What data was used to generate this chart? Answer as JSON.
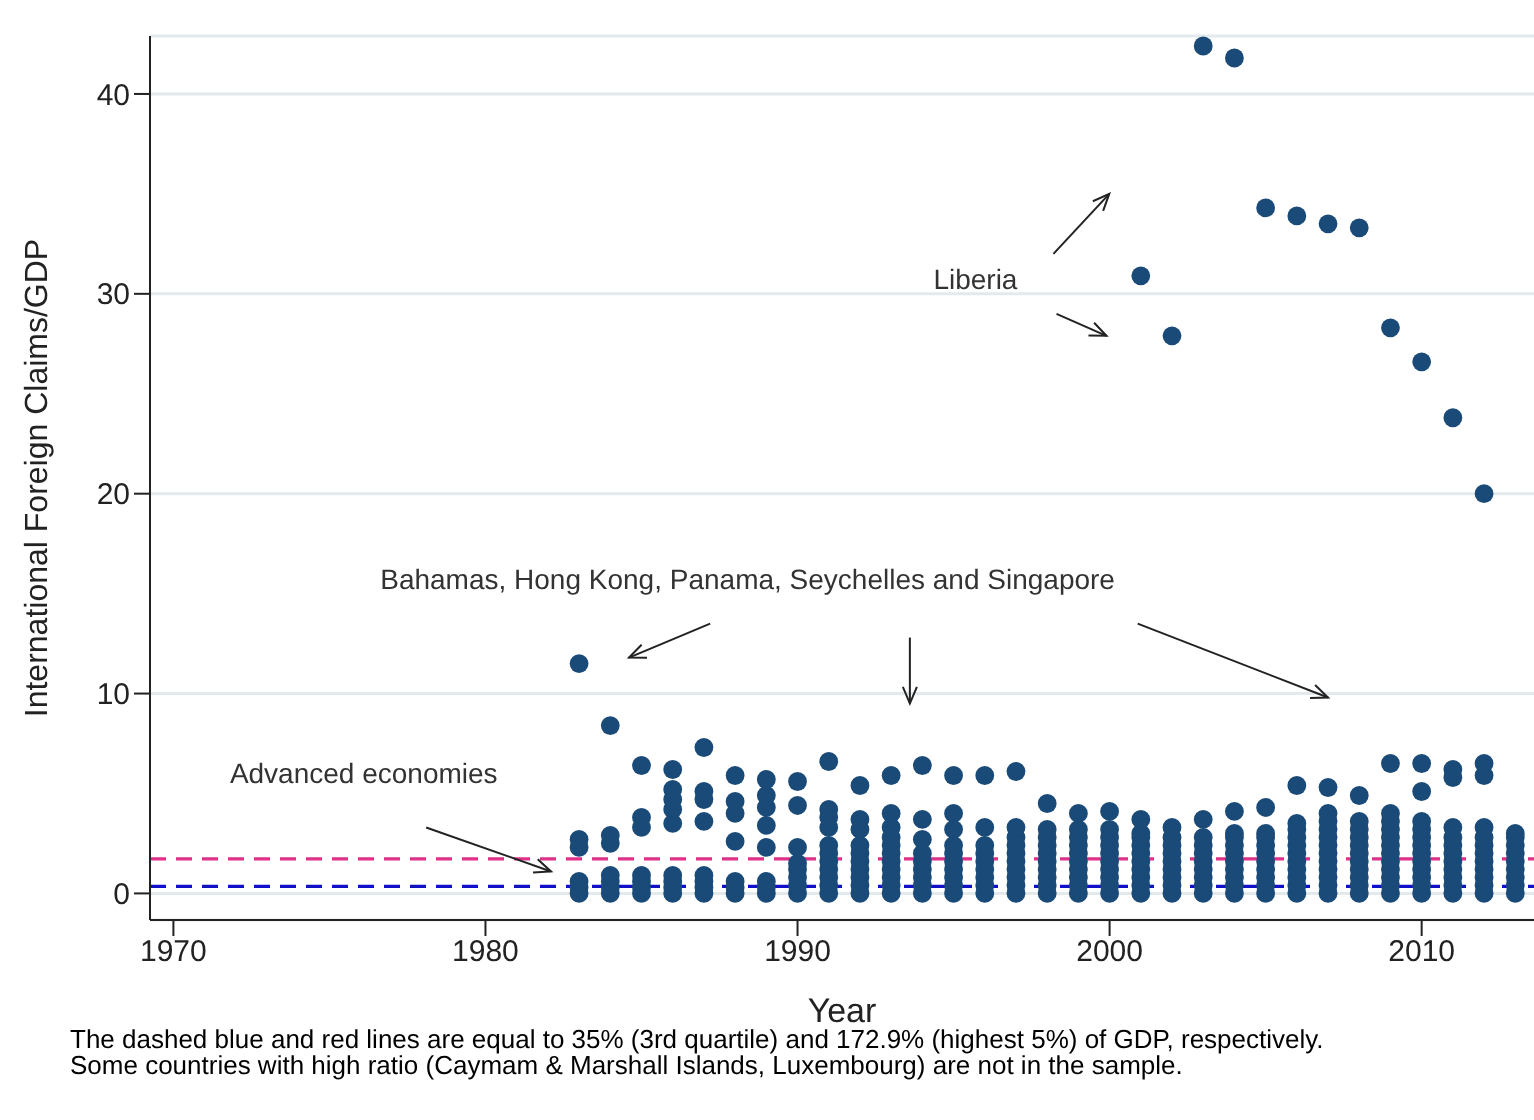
{
  "chart_data": {
    "type": "scatter",
    "xlabel": "Year",
    "ylabel": "International Foreign Claims/GDP",
    "xlim": [
      1969.25,
      2013.6
    ],
    "xticks": [
      1970,
      1980,
      1990,
      2000,
      2010
    ],
    "ylim": [
      -1.33,
      42.9
    ],
    "yticks": [
      0,
      10,
      20,
      30,
      40
    ],
    "grid": "y",
    "marker": "circle",
    "ref_lines": [
      {
        "axis": "y",
        "value": 0.35,
        "label": null,
        "color": "#1010c8",
        "line_style": "dashed"
      },
      {
        "axis": "y",
        "value": 1.729,
        "label": null,
        "color": "#e0308a",
        "line_style": "dashed"
      }
    ],
    "annotations": [
      "Liberia",
      "Bahamas, Hong Kong, Panama, Seychelles and Singapore",
      "Advanced economies",
      "The dashed blue and red lines are equal to 35% (3rd quartile) and 172.9% (highest 5%) of GDP, respectively.",
      "Some countries with high ratio (Caymam & Marshall Islands, Luxembourg) are not in the sample."
    ],
    "series": [
      {
        "color": "#1a4a78",
        "x": [
          1983,
          1983,
          1983,
          1983,
          1983,
          1983,
          1984,
          1984,
          1984,
          1984,
          1984,
          1984,
          1984,
          1985,
          1985,
          1985,
          1985,
          1985,
          1985,
          1985,
          1986,
          1986,
          1986,
          1986,
          1986,
          1986,
          1986,
          1986,
          1986,
          1987,
          1987,
          1987,
          1987,
          1987,
          1987,
          1987,
          1987,
          1988,
          1988,
          1988,
          1988,
          1988,
          1988,
          1988,
          1989,
          1989,
          1989,
          1989,
          1989,
          1989,
          1989,
          1989,
          1990,
          1990,
          1990,
          1990,
          1990,
          1990,
          1990,
          1990,
          1991,
          1991,
          1991,
          1991,
          1991,
          1991,
          1991,
          1991,
          1991,
          1991,
          1991,
          1992,
          1992,
          1992,
          1992,
          1992,
          1992,
          1992,
          1992,
          1992,
          1992,
          1993,
          1993,
          1993,
          1993,
          1993,
          1993,
          1993,
          1993,
          1993,
          1993,
          1993,
          1994,
          1994,
          1994,
          1994,
          1994,
          1994,
          1994,
          1994,
          1994,
          1995,
          1995,
          1995,
          1995,
          1995,
          1995,
          1995,
          1995,
          1995,
          1995,
          1996,
          1996,
          1996,
          1996,
          1996,
          1996,
          1996,
          1996,
          1996,
          1997,
          1997,
          1997,
          1997,
          1997,
          1997,
          1997,
          1997,
          1997,
          1997,
          1998,
          1998,
          1998,
          1998,
          1998,
          1998,
          1998,
          1998,
          1998,
          1998,
          1999,
          1999,
          1999,
          1999,
          1999,
          1999,
          1999,
          1999,
          1999,
          1999,
          2000,
          2000,
          2000,
          2000,
          2000,
          2000,
          2000,
          2000,
          2000,
          2000,
          2001,
          2001,
          2001,
          2001,
          2001,
          2001,
          2001,
          2001,
          2001,
          2001,
          2001,
          2002,
          2002,
          2002,
          2002,
          2002,
          2002,
          2002,
          2002,
          2002,
          2002,
          2003,
          2003,
          2003,
          2003,
          2003,
          2003,
          2003,
          2003,
          2003,
          2003,
          2004,
          2004,
          2004,
          2004,
          2004,
          2004,
          2004,
          2004,
          2004,
          2004,
          2004,
          2005,
          2005,
          2005,
          2005,
          2005,
          2005,
          2005,
          2005,
          2005,
          2005,
          2005,
          2006,
          2006,
          2006,
          2006,
          2006,
          2006,
          2006,
          2006,
          2006,
          2006,
          2006,
          2006,
          2007,
          2007,
          2007,
          2007,
          2007,
          2007,
          2007,
          2007,
          2007,
          2007,
          2007,
          2007,
          2007,
          2008,
          2008,
          2008,
          2008,
          2008,
          2008,
          2008,
          2008,
          2008,
          2008,
          2008,
          2008,
          2009,
          2009,
          2009,
          2009,
          2009,
          2009,
          2009,
          2009,
          2009,
          2009,
          2009,
          2009,
          2009,
          2010,
          2010,
          2010,
          2010,
          2010,
          2010,
          2010,
          2010,
          2010,
          2010,
          2010,
          2010,
          2010,
          2011,
          2011,
          2011,
          2011,
          2011,
          2011,
          2011,
          2011,
          2011,
          2011,
          2011,
          2011,
          2012,
          2012,
          2012,
          2012,
          2012,
          2012,
          2012,
          2012,
          2012,
          2012,
          2012,
          2012,
          2013,
          2013,
          2013,
          2013,
          2013,
          2013,
          2013,
          2013,
          2013
        ],
        "values": [
          0,
          0.3,
          0.6,
          2.3,
          2.7,
          11.5,
          0,
          0.3,
          0.6,
          0.9,
          2.5,
          2.9,
          8.4,
          0,
          0.3,
          0.6,
          0.9,
          3.3,
          3.8,
          6.4,
          0,
          0.3,
          0.6,
          0.9,
          3.5,
          4.2,
          4.7,
          5.2,
          6.2,
          0,
          0.3,
          0.6,
          0.9,
          3.6,
          4.7,
          5.1,
          7.3,
          0,
          0.3,
          0.6,
          2.6,
          4.0,
          4.6,
          5.9,
          0,
          0.3,
          0.6,
          2.3,
          3.4,
          4.3,
          4.9,
          5.7,
          0,
          0.4,
          0.8,
          1.2,
          1.5,
          2.3,
          4.4,
          5.6,
          0,
          0.4,
          0.8,
          1.2,
          1.6,
          2.0,
          2.4,
          3.3,
          3.8,
          4.2,
          6.6,
          0,
          0.4,
          0.8,
          1.2,
          1.6,
          2.0,
          2.4,
          3.2,
          3.7,
          5.4,
          0,
          0.4,
          0.8,
          1.2,
          1.6,
          2.0,
          2.4,
          2.8,
          3.3,
          4.0,
          5.9,
          0,
          0.4,
          0.8,
          1.2,
          1.6,
          2.0,
          2.7,
          3.7,
          6.4,
          0,
          0.4,
          0.8,
          1.2,
          1.6,
          2.0,
          2.4,
          3.2,
          4.0,
          5.9,
          0,
          0.4,
          0.8,
          1.2,
          1.6,
          2.0,
          2.4,
          3.3,
          5.9,
          0,
          0.4,
          0.8,
          1.2,
          1.6,
          2.0,
          2.4,
          2.8,
          3.3,
          6.1,
          0,
          0.4,
          0.8,
          1.2,
          1.6,
          2.0,
          2.4,
          2.8,
          3.2,
          4.5,
          0,
          0.4,
          0.8,
          1.2,
          1.6,
          2.0,
          2.4,
          2.8,
          3.2,
          4.0,
          0,
          0.4,
          0.8,
          1.2,
          1.6,
          2.0,
          2.4,
          2.8,
          3.2,
          4.1,
          0,
          0.4,
          0.8,
          1.2,
          1.6,
          2.0,
          2.4,
          2.8,
          3.0,
          3.7,
          30.9,
          0,
          0.4,
          0.8,
          1.2,
          1.6,
          2.0,
          2.4,
          2.8,
          3.3,
          27.9,
          0,
          0.4,
          0.8,
          1.2,
          1.6,
          2.0,
          2.4,
          2.8,
          3.7,
          42.4,
          0,
          0.4,
          0.8,
          1.2,
          1.6,
          2.0,
          2.4,
          2.8,
          3.0,
          4.1,
          41.8,
          0,
          0.4,
          0.8,
          1.2,
          1.6,
          2.0,
          2.4,
          2.8,
          3.0,
          4.3,
          34.3,
          0,
          0.4,
          0.8,
          1.2,
          1.6,
          2.0,
          2.4,
          2.8,
          3.2,
          3.5,
          5.4,
          33.9,
          0,
          0.4,
          0.8,
          1.2,
          1.6,
          2.0,
          2.4,
          2.8,
          3.2,
          3.6,
          4.0,
          5.3,
          33.5,
          0,
          0.4,
          0.8,
          1.2,
          1.6,
          2.0,
          2.4,
          2.8,
          3.2,
          3.6,
          4.9,
          33.3,
          0,
          0.4,
          0.8,
          1.2,
          1.6,
          2.0,
          2.4,
          2.8,
          3.2,
          3.6,
          4.0,
          6.5,
          28.3,
          0,
          0.4,
          0.8,
          1.2,
          1.6,
          2.0,
          2.4,
          2.8,
          3.2,
          3.6,
          5.1,
          6.5,
          26.6,
          0,
          0.4,
          0.8,
          1.2,
          1.6,
          2.0,
          2.4,
          2.8,
          3.3,
          5.8,
          6.2,
          23.8,
          0,
          0.4,
          0.8,
          1.2,
          1.6,
          2.0,
          2.4,
          2.8,
          3.3,
          5.9,
          6.5,
          20.0,
          0,
          0.4,
          0.8,
          1.2,
          1.6,
          2.0,
          2.4,
          2.8,
          3.0
        ]
      }
    ]
  }
}
